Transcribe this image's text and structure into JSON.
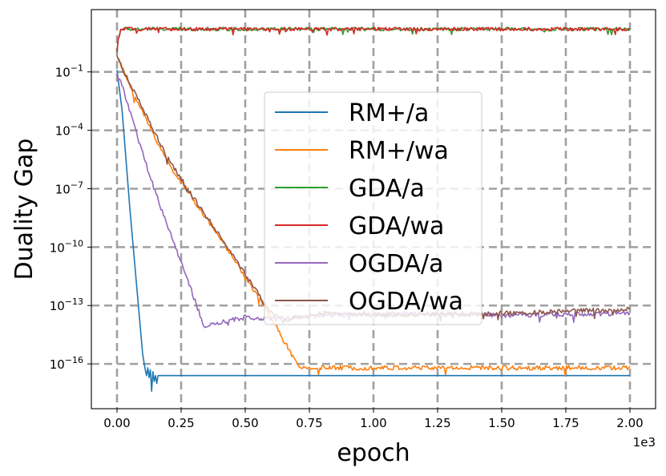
{
  "chart_data": {
    "type": "line",
    "xlabel": "epoch",
    "ylabel": "Duality Gap",
    "x_offset_label": "1e3",
    "xlim": [
      -0.1,
      2.1
    ],
    "ylim_log10": [
      -18.3,
      2.2
    ],
    "yscale": "log",
    "grid": true,
    "legend_position": "center",
    "x_ticks": [
      {
        "value": 0.0,
        "label": "0.00"
      },
      {
        "value": 0.25,
        "label": "0.25"
      },
      {
        "value": 0.5,
        "label": "0.50"
      },
      {
        "value": 0.75,
        "label": "0.75"
      },
      {
        "value": 1.0,
        "label": "1.00"
      },
      {
        "value": 1.25,
        "label": "1.25"
      },
      {
        "value": 1.5,
        "label": "1.50"
      },
      {
        "value": 1.75,
        "label": "1.75"
      },
      {
        "value": 2.0,
        "label": "2.00"
      }
    ],
    "y_ticks": [
      {
        "exp": -1,
        "base": "10",
        "power": "−1"
      },
      {
        "exp": -4,
        "base": "10",
        "power": "−4"
      },
      {
        "exp": -7,
        "base": "10",
        "power": "−7"
      },
      {
        "exp": -10,
        "base": "10",
        "power": "−10"
      },
      {
        "exp": -13,
        "base": "10",
        "power": "−13"
      },
      {
        "exp": -16,
        "base": "10",
        "power": "−16"
      }
    ],
    "series": [
      {
        "name": "RM+/a",
        "color": "#1f77b4",
        "x": [
          0.0,
          0.02,
          0.05,
          0.08,
          0.1,
          0.11,
          0.115,
          0.12,
          0.125,
          0.13,
          0.135,
          0.14,
          0.145,
          0.15,
          0.155,
          0.16,
          0.2,
          1.0,
          2.0
        ],
        "log10_y": [
          -0.9,
          -3.0,
          -8.0,
          -12.5,
          -15.5,
          -16.3,
          -16.6,
          -16.2,
          -16.7,
          -16.3,
          -17.4,
          -16.4,
          -16.9,
          -16.6,
          -17.0,
          -16.6,
          -16.6,
          -16.6,
          -16.6
        ],
        "noise": 0
      },
      {
        "name": "RM+/wa",
        "color": "#ff7f0e",
        "x": [
          0.0,
          0.01,
          0.05,
          0.1,
          0.2,
          0.3,
          0.4,
          0.5,
          0.6,
          0.68,
          0.7,
          0.71,
          0.8,
          1.0,
          1.5,
          2.0
        ],
        "log10_y": [
          -0.2,
          -0.5,
          -1.7,
          -3.1,
          -5.7,
          -7.6,
          -9.5,
          -11.5,
          -13.6,
          -15.5,
          -16.0,
          -16.2,
          -16.2,
          -16.2,
          -16.2,
          -16.2
        ],
        "noise": 0.12
      },
      {
        "name": "GDA/a",
        "color": "#2ca02c",
        "x": [
          0.0,
          0.005,
          0.015,
          0.03,
          1.0,
          2.0
        ],
        "log10_y": [
          0.0,
          0.7,
          1.2,
          1.2,
          1.2,
          1.2
        ],
        "noise": 0.09
      },
      {
        "name": "GDA/wa",
        "color": "#d62728",
        "x": [
          0.0,
          0.005,
          0.015,
          0.03,
          1.0,
          2.0
        ],
        "log10_y": [
          0.0,
          0.7,
          1.2,
          1.2,
          1.2,
          1.2
        ],
        "noise": 0.09
      },
      {
        "name": "OGDA/a",
        "color": "#9467bd",
        "x": [
          0.0,
          0.02,
          0.05,
          0.1,
          0.15,
          0.2,
          0.25,
          0.3,
          0.34,
          0.4,
          0.5,
          0.6,
          0.7,
          0.8,
          1.0,
          1.5,
          2.0
        ],
        "log10_y": [
          -1.0,
          -1.7,
          -3.0,
          -5.2,
          -7.2,
          -9.0,
          -10.8,
          -12.6,
          -14.1,
          -13.9,
          -13.6,
          -13.7,
          -13.6,
          -13.5,
          -13.4,
          -13.5,
          -13.4
        ],
        "noise": 0.12
      },
      {
        "name": "OGDA/wa",
        "color": "#8c564b",
        "x": [
          0.0,
          0.01,
          0.05,
          0.1,
          0.2,
          0.3,
          0.4,
          0.5,
          0.6,
          0.65,
          0.7,
          0.8,
          1.0,
          1.5,
          2.0
        ],
        "log10_y": [
          -0.2,
          -0.5,
          -1.6,
          -2.9,
          -5.5,
          -7.5,
          -9.4,
          -11.4,
          -13.4,
          -13.8,
          -13.6,
          -13.4,
          -13.5,
          -13.4,
          -13.2
        ],
        "noise": 0.12
      }
    ]
  }
}
